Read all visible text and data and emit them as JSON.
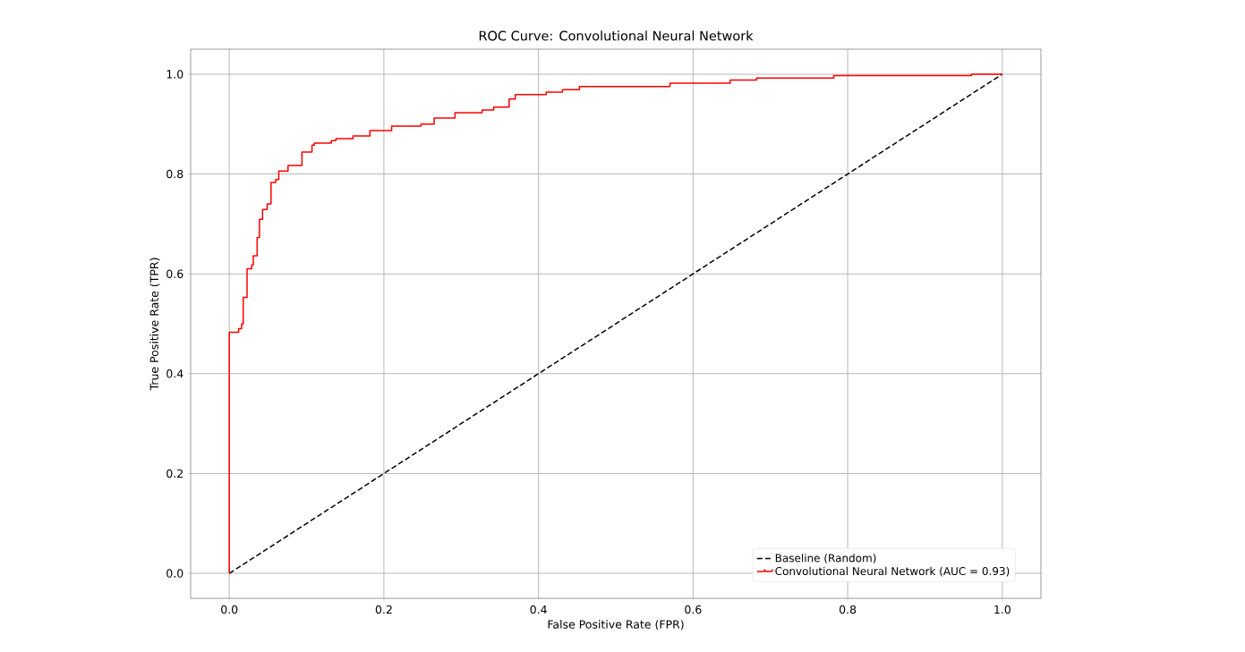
{
  "chart_data": {
    "type": "line",
    "title": "ROC Curve: Convolutional Neural Network",
    "xlabel": "False Positive Rate (FPR)",
    "ylabel": "True Positive Rate (TPR)",
    "xlim": [
      -0.05,
      1.05
    ],
    "ylim": [
      -0.05,
      1.05
    ],
    "xticks": [
      {
        "value": 0,
        "label": "0.0"
      },
      {
        "value": 0.2,
        "label": "0.2"
      },
      {
        "value": 0.4,
        "label": "0.4"
      },
      {
        "value": 0.6,
        "label": "0.6"
      },
      {
        "value": 0.8,
        "label": "0.8"
      },
      {
        "value": 1,
        "label": "1.0"
      }
    ],
    "yticks": [
      {
        "value": 0,
        "label": "0.0"
      },
      {
        "value": 0.2,
        "label": "0.2"
      },
      {
        "value": 0.4,
        "label": "0.4"
      },
      {
        "value": 0.6,
        "label": "0.6"
      },
      {
        "value": 0.8,
        "label": "0.8"
      },
      {
        "value": 1,
        "label": "1.0"
      }
    ],
    "grid": true,
    "legend": "bottom right",
    "series": [
      {
        "name": "Baseline (Random)",
        "color": "#000000",
        "line_style": "dashed",
        "x": [
          0,
          1
        ],
        "values": [
          0,
          1
        ]
      },
      {
        "name": "Convolutional Neural Network (AUC = 0.93)",
        "type": "step",
        "color": "#ff0000",
        "line_style": "solid",
        "x": [
          0,
          0,
          0.012,
          0.016,
          0.018,
          0.023,
          0.029,
          0.031,
          0.036,
          0.039,
          0.043,
          0.049,
          0.054,
          0.06,
          0.064,
          0.076,
          0.094,
          0.107,
          0.11,
          0.132,
          0.138,
          0.16,
          0.182,
          0.21,
          0.248,
          0.265,
          0.292,
          0.327,
          0.342,
          0.362,
          0.37,
          0.41,
          0.431,
          0.453,
          0.57,
          0.648,
          0.682,
          0.782,
          0.96,
          1
        ],
        "values": [
          0,
          0.483,
          0.49,
          0.5,
          0.553,
          0.61,
          0.618,
          0.636,
          0.673,
          0.709,
          0.729,
          0.74,
          0.783,
          0.789,
          0.806,
          0.817,
          0.844,
          0.858,
          0.862,
          0.867,
          0.871,
          0.876,
          0.887,
          0.896,
          0.9,
          0.912,
          0.923,
          0.928,
          0.934,
          0.95,
          0.959,
          0.964,
          0.969,
          0.975,
          0.982,
          0.988,
          0.992,
          0.997,
          1.0,
          1.0
        ]
      }
    ]
  }
}
